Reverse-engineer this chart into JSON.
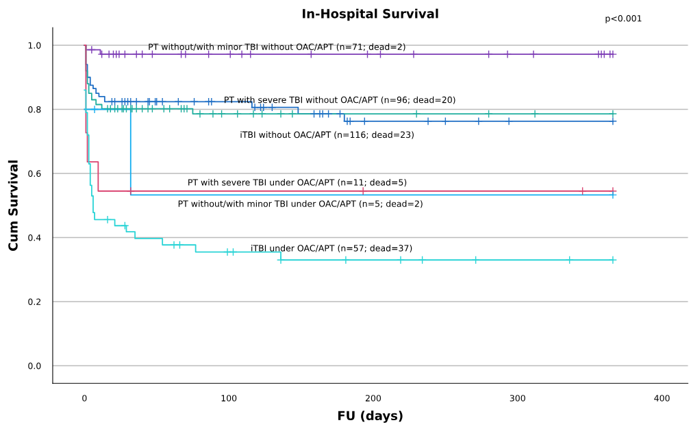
{
  "chart_data": {
    "type": "step",
    "title": "In-Hospital Survival",
    "xlabel": "FU (days)",
    "ylabel": "Cum Survival",
    "xlim": [
      -22,
      418
    ],
    "ylim": [
      -0.055,
      1.055
    ],
    "xticks": [
      0,
      100,
      200,
      300,
      400
    ],
    "yticks": [
      {
        "value": 0.0,
        "label": "0.0"
      },
      {
        "value": 0.2,
        "label": "0.2"
      },
      {
        "value": 0.4,
        "label": "0.4"
      },
      {
        "value": 0.6,
        "label": "0.6"
      },
      {
        "value": 0.8,
        "label": "0.8"
      },
      {
        "value": 1.0,
        "label": "1.0"
      }
    ],
    "grid": "y",
    "legend": false,
    "line_style": "solid",
    "annotations": [
      "p<0.001",
      "PT without/with minor TBI without OAC/APT (n=71; dead=2)",
      "PT with severe TBI without OAC/APT (n=96; dead=20)",
      "iTBI without OAC/APT (n=116; dead=23)",
      "PT with severe TBI under OAC/APT (n=11; dead=5)",
      "PT without/with minor TBI under OAC/APT (n=5; dead=2)",
      "iTBI under OAC/APT (n=57; dead=37)"
    ],
    "series": [
      {
        "marker": "none",
        "color": "#7d3cb5",
        "x": [
          0,
          1,
          11,
          366
        ],
        "values": [
          1.0,
          0.986,
          0.972,
          0.972
        ]
      },
      {
        "type": "scatter",
        "marker": "cross",
        "color": "#7d3cb5",
        "x": [
          5,
          12,
          17,
          20,
          22,
          24,
          28,
          36,
          40,
          47,
          67,
          70,
          86,
          101,
          109,
          115,
          157,
          196,
          205,
          228,
          280,
          293,
          311,
          356,
          358,
          360,
          364,
          366
        ],
        "values": [
          0.986,
          0.972,
          0.972,
          0.972,
          0.972,
          0.972,
          0.972,
          0.972,
          0.972,
          0.972,
          0.972,
          0.972,
          0.972,
          0.972,
          0.972,
          0.972,
          0.972,
          0.972,
          0.972,
          0.972,
          0.972,
          0.972,
          0.972,
          0.972,
          0.972,
          0.972,
          0.972,
          0.972
        ]
      },
      {
        "marker": "none",
        "color": "#1f6fc5",
        "x": [
          0,
          1,
          2,
          4,
          6,
          8,
          10,
          14,
          116,
          148,
          180,
          366
        ],
        "values": [
          1.0,
          0.94,
          0.9,
          0.875,
          0.865,
          0.85,
          0.84,
          0.824,
          0.806,
          0.786,
          0.763,
          0.763
        ]
      },
      {
        "type": "scatter",
        "marker": "cross",
        "color": "#1f6fc5",
        "x": [
          19,
          21,
          26,
          28,
          30,
          32,
          36,
          44,
          45,
          49,
          50,
          54,
          65,
          76,
          86,
          88,
          118,
          122,
          124,
          130,
          159,
          163,
          165,
          169,
          177,
          182,
          184,
          194,
          238,
          250,
          273,
          294,
          366
        ],
        "values": [
          0.824,
          0.824,
          0.824,
          0.824,
          0.824,
          0.824,
          0.824,
          0.824,
          0.824,
          0.824,
          0.824,
          0.824,
          0.824,
          0.824,
          0.824,
          0.824,
          0.806,
          0.806,
          0.806,
          0.806,
          0.786,
          0.786,
          0.786,
          0.786,
          0.786,
          0.763,
          0.763,
          0.763,
          0.763,
          0.763,
          0.763,
          0.763,
          0.763
        ]
      },
      {
        "marker": "none",
        "color": "#1fae9e",
        "x": [
          0,
          1,
          2,
          3,
          5,
          8,
          12,
          75,
          366
        ],
        "values": [
          1.0,
          0.92,
          0.88,
          0.85,
          0.83,
          0.815,
          0.802,
          0.786,
          0.786
        ]
      },
      {
        "type": "scatter",
        "marker": "cross",
        "color": "#1fae9e",
        "x": [
          16,
          18,
          21,
          23,
          26,
          27,
          29,
          32,
          33,
          36,
          40,
          44,
          47,
          55,
          59,
          67,
          69,
          71,
          80,
          89,
          95,
          106,
          117,
          123,
          136,
          144,
          230,
          280,
          312,
          366
        ],
        "values": [
          0.802,
          0.802,
          0.802,
          0.802,
          0.802,
          0.802,
          0.802,
          0.802,
          0.802,
          0.802,
          0.802,
          0.802,
          0.802,
          0.802,
          0.802,
          0.802,
          0.802,
          0.802,
          0.786,
          0.786,
          0.786,
          0.786,
          0.786,
          0.786,
          0.786,
          0.786,
          0.786,
          0.786,
          0.786,
          0.786
        ]
      },
      {
        "marker": "none",
        "color": "#d9426f",
        "x": [
          0,
          1,
          2,
          9.5,
          366
        ],
        "values": [
          1.0,
          0.727,
          0.636,
          0.545,
          0.545
        ]
      },
      {
        "type": "scatter",
        "marker": "cross",
        "color": "#d9426f",
        "x": [
          32,
          193,
          345,
          366
        ],
        "values": [
          0.545,
          0.545,
          0.545,
          0.545
        ]
      },
      {
        "marker": "none",
        "color": "#14aef0",
        "x": [
          0,
          32,
          366
        ],
        "values": [
          0.8,
          0.533,
          0.533
        ]
      },
      {
        "type": "scatter",
        "marker": "cross",
        "color": "#14aef0",
        "x": [
          7,
          366
        ],
        "values": [
          0.8,
          0.533
        ]
      },
      {
        "marker": "none",
        "color": "#2ad4d6",
        "x": [
          0,
          1,
          2,
          3,
          4,
          5,
          6,
          7,
          21,
          29,
          35,
          54,
          77,
          136,
          366
        ],
        "values": [
          0.86,
          0.79,
          0.72,
          0.63,
          0.563,
          0.53,
          0.478,
          0.456,
          0.437,
          0.418,
          0.397,
          0.377,
          0.355,
          0.33,
          0.33
        ]
      },
      {
        "type": "scatter",
        "marker": "cross",
        "color": "#2ad4d6",
        "x": [
          16,
          28,
          62,
          66,
          99,
          103,
          136,
          181,
          219,
          234,
          271,
          336,
          366
        ],
        "values": [
          0.456,
          0.437,
          0.377,
          0.377,
          0.355,
          0.355,
          0.33,
          0.33,
          0.33,
          0.33,
          0.33,
          0.33,
          0.33
        ]
      }
    ]
  }
}
